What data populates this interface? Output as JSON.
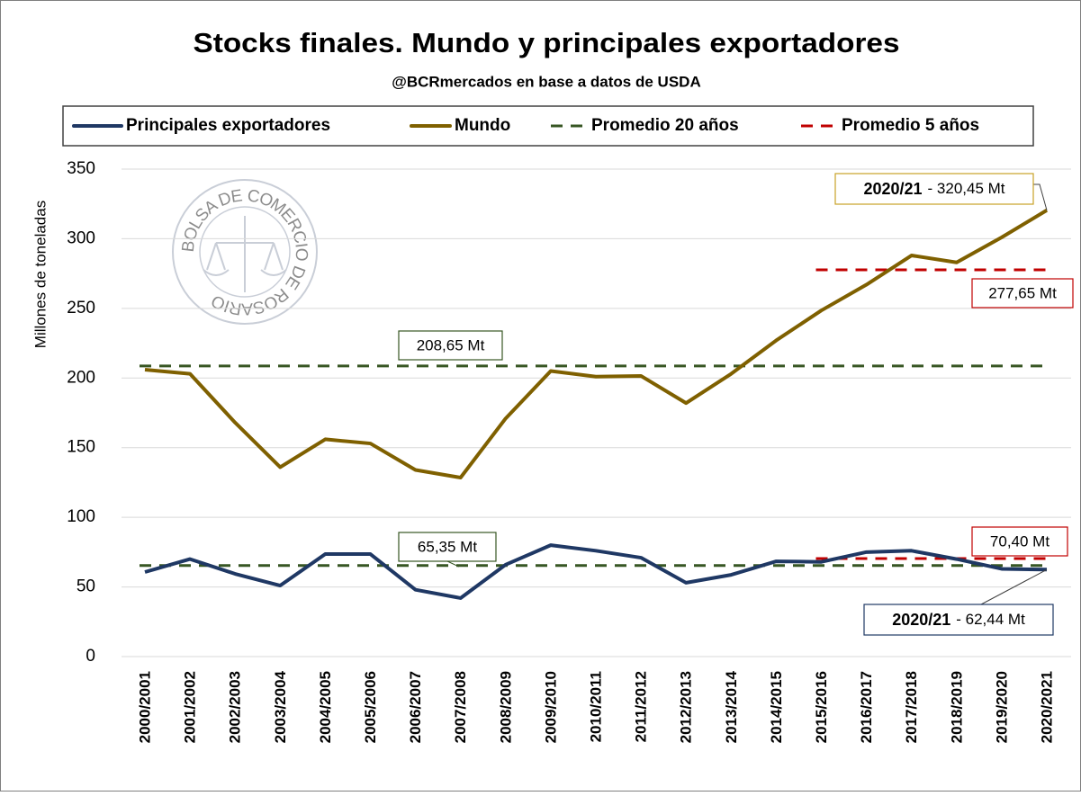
{
  "chart_data": {
    "type": "line",
    "title": "Stocks finales. Mundo y principales exportadores",
    "subtitle": "@BCRmercados en base a datos de USDA",
    "y_label": "Millones de toneladas",
    "watermark": "BOLSA DE COMERCIO DE ROSARIO",
    "categories": [
      "2000/2001",
      "2001/2002",
      "2002/2003",
      "2003/2004",
      "2004/2005",
      "2005/2006",
      "2006/2007",
      "2007/2008",
      "2008/2009",
      "2009/2010",
      "2010/2011",
      "2011/2012",
      "2012/2013",
      "2013/2014",
      "2014/2015",
      "2015/2016",
      "2016/2017",
      "2017/2018",
      "2018/2019",
      "2019/2020",
      "2020/2021"
    ],
    "series": [
      {
        "name": "Principales exportadores",
        "color": "#1f3864",
        "values": [
          60.7,
          70,
          59.4,
          51,
          73.6,
          73.6,
          48,
          42,
          66,
          80,
          76,
          71,
          53,
          58.7,
          68.4,
          68,
          75,
          76,
          70,
          63,
          62.44
        ]
      },
      {
        "name": "Mundo",
        "color": "#7f6000",
        "values": [
          206,
          203,
          168,
          136,
          156,
          153,
          134,
          128.5,
          171,
          205,
          201,
          201.5,
          182,
          203,
          227,
          248.5,
          267,
          288,
          283,
          301,
          320.45
        ]
      }
    ],
    "reference_lines": [
      {
        "name": "Promedio 20 años",
        "color": "#375623",
        "from": 0,
        "lines": [
          {
            "value": 208.65,
            "label": "208,65 Mt"
          },
          {
            "value": 65.35,
            "label": "65,35 Mt"
          }
        ]
      },
      {
        "name": "Promedio 5 años",
        "color": "#c00000",
        "from": 15,
        "lines": [
          {
            "value": 277.65,
            "label": "277,65 Mt"
          },
          {
            "value": 70.4,
            "label": "70,40 Mt"
          }
        ]
      }
    ],
    "annotations": [
      {
        "period": "2020/21",
        "text": "- 320,45 Mt"
      },
      {
        "period": "2020/21",
        "text": "- 62,44 Mt"
      }
    ],
    "ylim": [
      0,
      350
    ],
    "yticks": [
      0,
      50,
      100,
      150,
      200,
      250,
      300,
      350
    ],
    "grid": true,
    "legend": "top"
  }
}
